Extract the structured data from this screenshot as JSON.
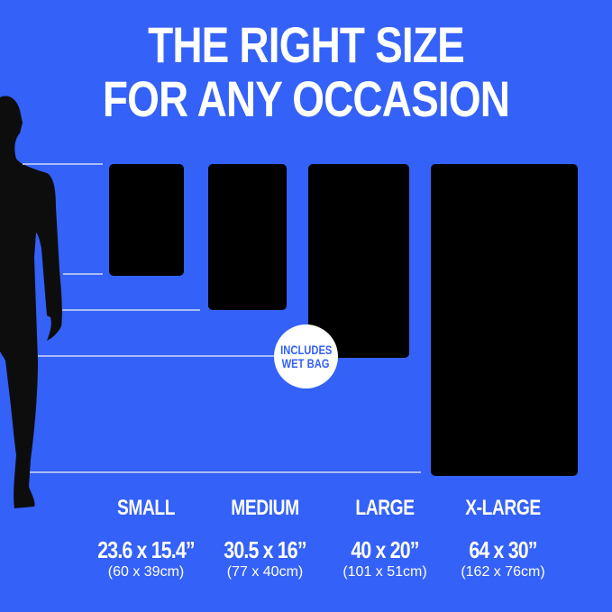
{
  "title": {
    "line1": "THE RIGHT SIZE",
    "line2": "FOR ANY OCCASION"
  },
  "badge": {
    "line1": "INCLUDES",
    "line2": "WET BAG"
  },
  "colors": {
    "background": "#3461f7",
    "mats": "#000000",
    "text": "#ffffff"
  },
  "sizes": [
    {
      "name": "SMALL",
      "inches": "23.6 x 15.4”",
      "cm": "(60 x 39cm)"
    },
    {
      "name": "MEDIUM",
      "inches": "30.5 x 16”",
      "cm": "(77 x 40cm)"
    },
    {
      "name": "LARGE",
      "inches": "40 x 20”",
      "cm": "(101 x 51cm)"
    },
    {
      "name": "X-LARGE",
      "inches": "64 x 30”",
      "cm": "(162 x 76cm)"
    }
  ]
}
